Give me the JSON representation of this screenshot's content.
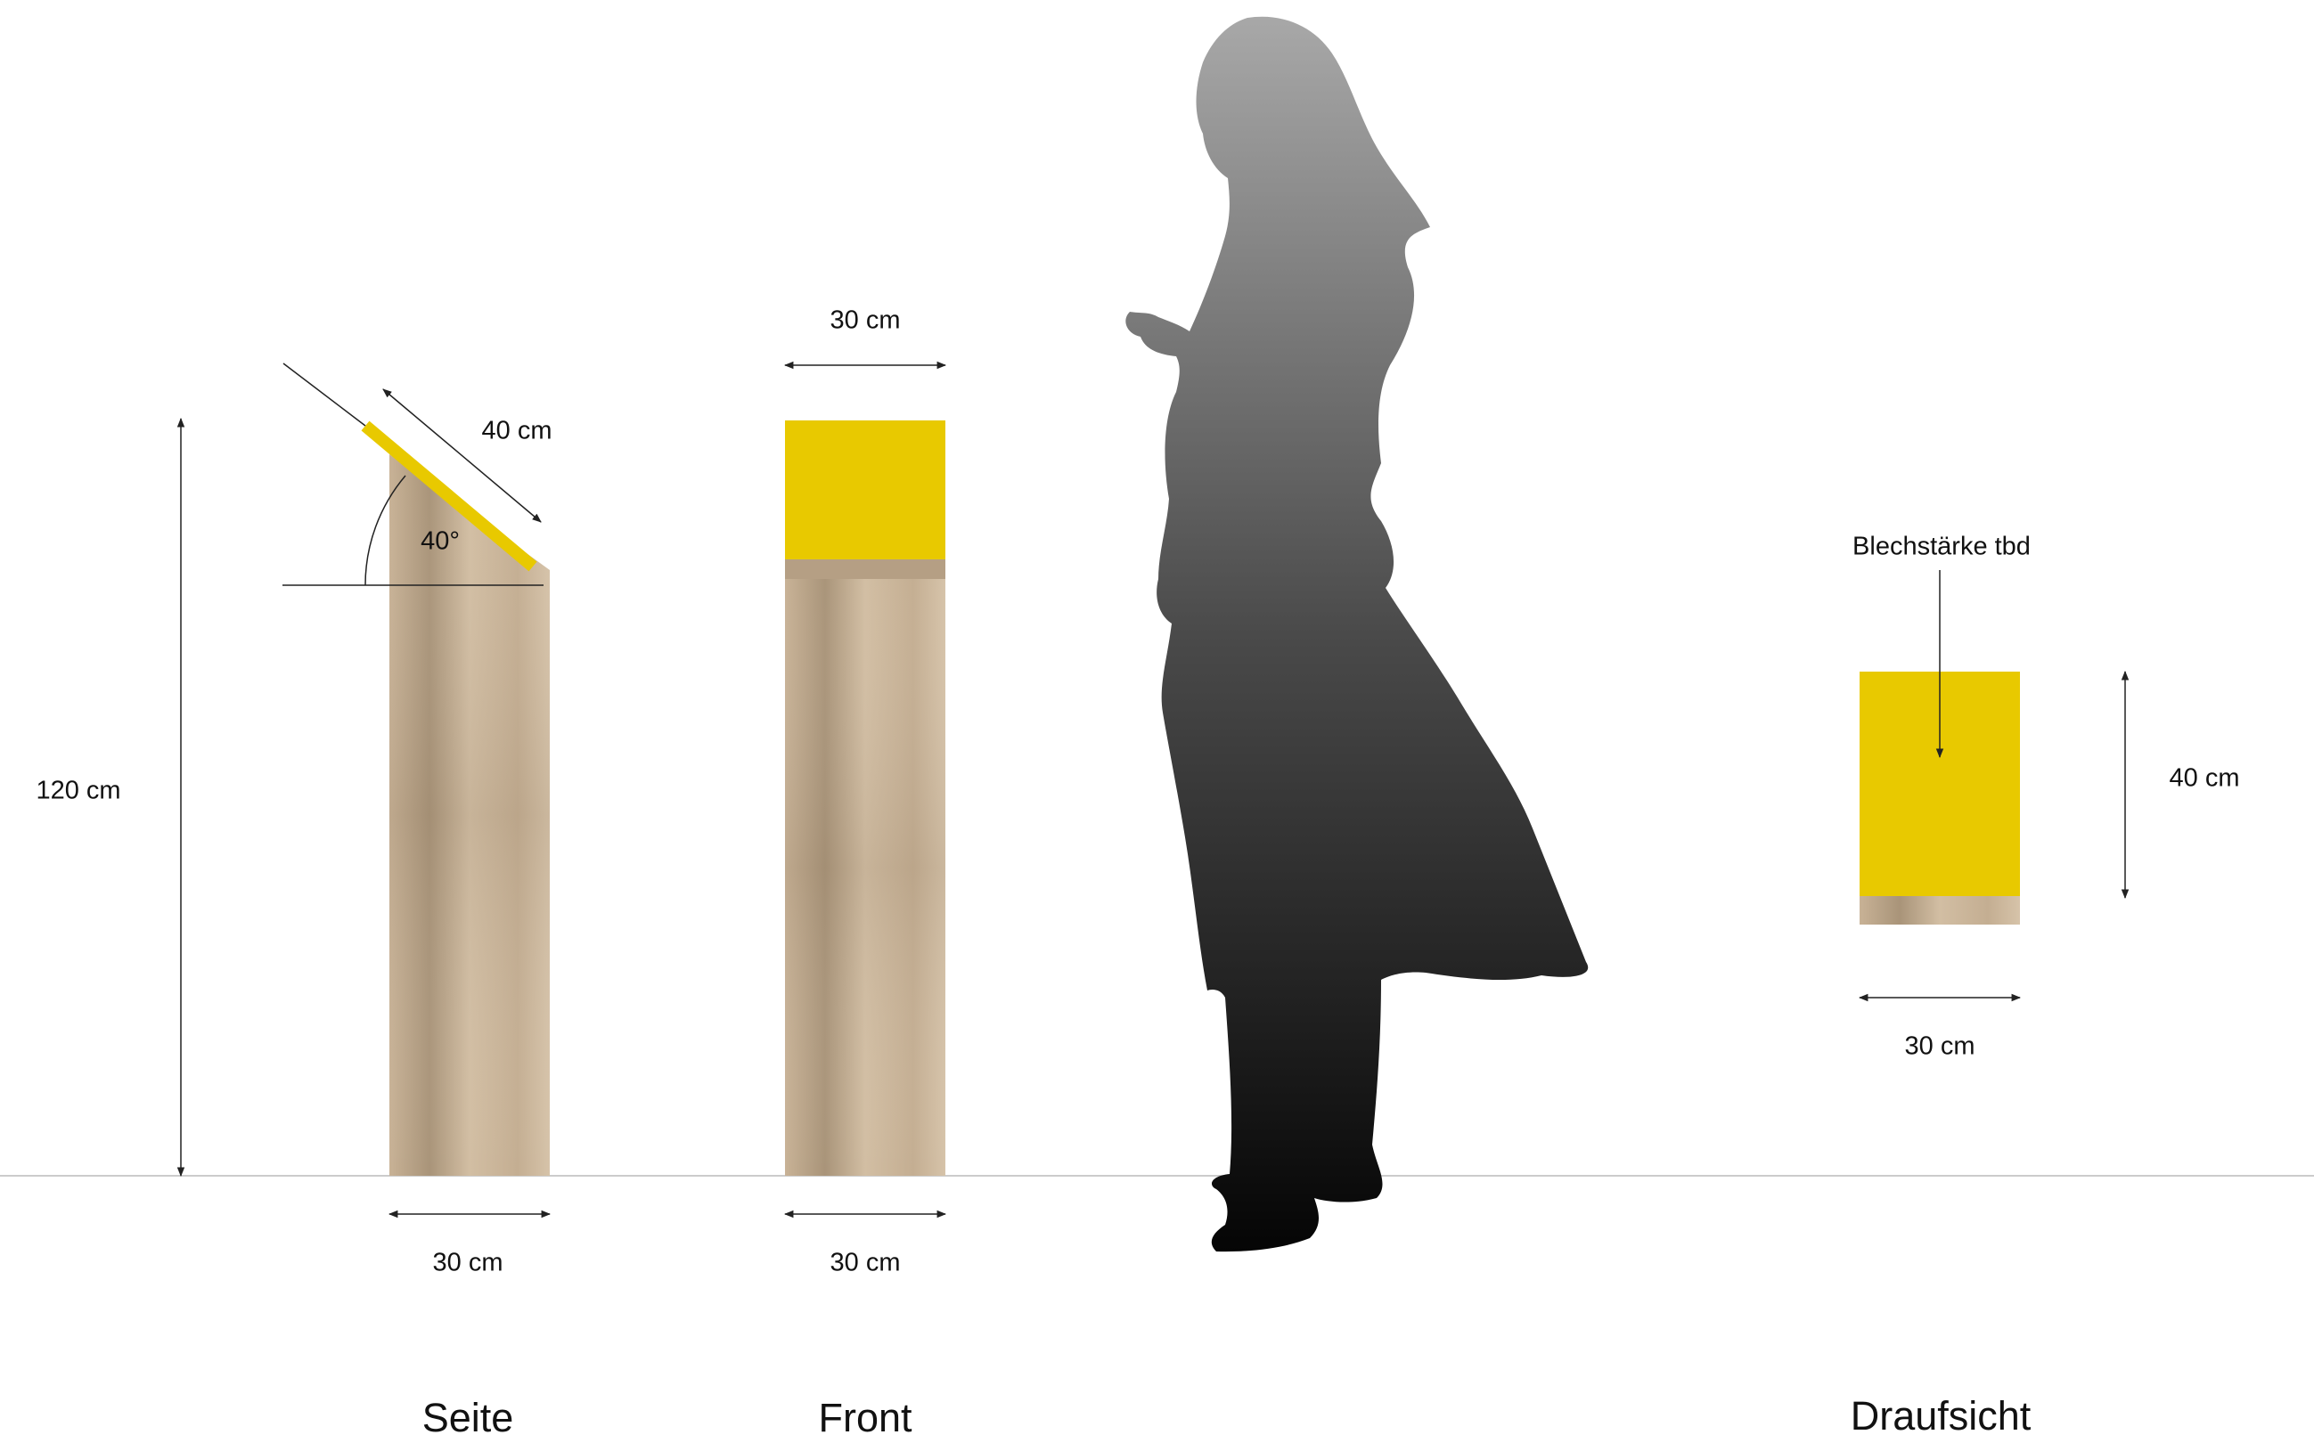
{
  "diagram": {
    "views": {
      "side": "Seite",
      "front": "Front",
      "top": "Draufsicht"
    },
    "dimensions": {
      "height": "120 cm",
      "side_panel": "40 cm",
      "side_angle": "40°",
      "side_width": "30 cm",
      "front_top_width": "30 cm",
      "front_bottom_width": "30 cm",
      "top_depth": "40 cm",
      "top_width": "30 cm",
      "top_note": "Blechstärke tbd"
    },
    "colors": {
      "plate": "#e8c900",
      "wood": "#cdb79c",
      "wood_dark": "#a08a70",
      "line": "#222222",
      "ground": "#cccccc"
    },
    "icons": {
      "person": "person-silhouette-icon"
    }
  }
}
